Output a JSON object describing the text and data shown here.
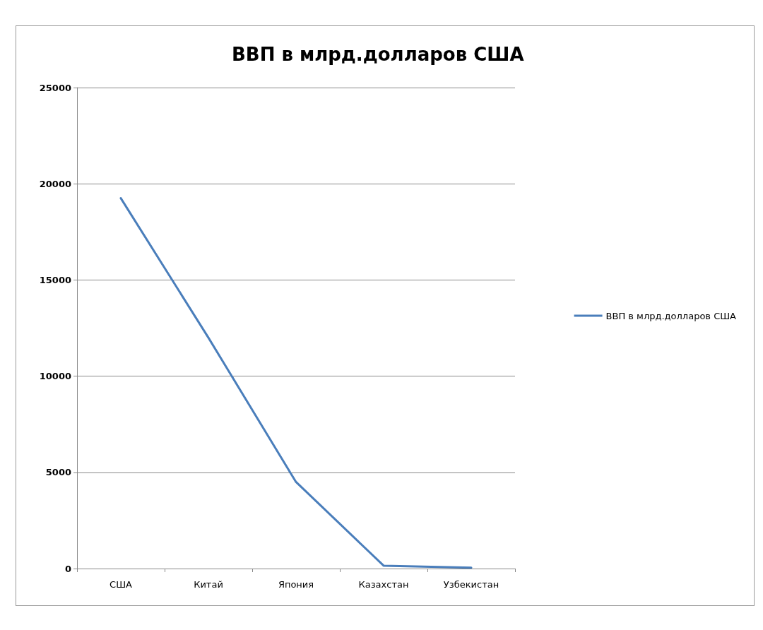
{
  "chart_data": {
    "type": "line",
    "title": "ВВП в млрд.долларов США",
    "categories": [
      "США",
      "Китай",
      "Япония",
      "Казахстан",
      "Узбекистан"
    ],
    "series": [
      {
        "name": "ВВП в млрд.долларов США",
        "color": "#4a7ebb",
        "values": [
          19250,
          12000,
          4500,
          150,
          50
        ]
      }
    ],
    "ylim": [
      0,
      25000
    ],
    "yticks": [
      0,
      5000,
      10000,
      15000,
      20000,
      25000
    ],
    "grid": "y",
    "legend": "right",
    "marker": "none"
  }
}
